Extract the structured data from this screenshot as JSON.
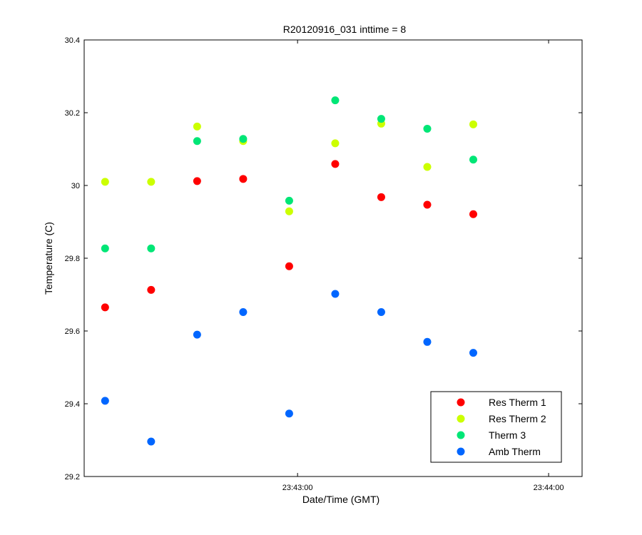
{
  "chart_data": {
    "type": "scatter",
    "title": "R20120916_031 inttime = 8",
    "xlabel": "Date/Time (GMT)",
    "ylabel": "Temperature (C)",
    "ylim": [
      29.2,
      30.4
    ],
    "yticks": [
      "29.2",
      "29.4",
      "29.6",
      "29.8",
      "30",
      "30.2",
      "30.4"
    ],
    "xlim": [
      "23:42:09",
      "23:44:08"
    ],
    "xticks": [
      "23:43:00",
      "23:44:00"
    ],
    "grid": false,
    "legend_position": "bottom-right",
    "x": [
      "23:42:14",
      "23:42:25",
      "23:42:36",
      "23:42:47",
      "23:42:58",
      "23:43:09",
      "23:43:20",
      "23:43:31",
      "23:43:42"
    ],
    "series": [
      {
        "name": "Res Therm 1",
        "color": "#ff0000",
        "values": [
          29.665,
          29.713,
          30.012,
          30.018,
          29.778,
          30.059,
          29.968,
          29.947,
          29.921
        ]
      },
      {
        "name": "Res Therm 2",
        "color": "#ccff00",
        "values": [
          30.01,
          30.01,
          30.162,
          30.122,
          29.929,
          30.116,
          30.17,
          30.051,
          30.168
        ]
      },
      {
        "name": "Therm 3",
        "color": "#00e676",
        "values": [
          29.827,
          29.827,
          30.122,
          30.128,
          29.958,
          30.234,
          30.183,
          30.156,
          30.071
        ]
      },
      {
        "name": "Amb Therm",
        "color": "#0066ff",
        "values": [
          29.408,
          29.296,
          29.59,
          29.652,
          29.373,
          29.702,
          29.652,
          29.57,
          29.54
        ]
      }
    ]
  }
}
